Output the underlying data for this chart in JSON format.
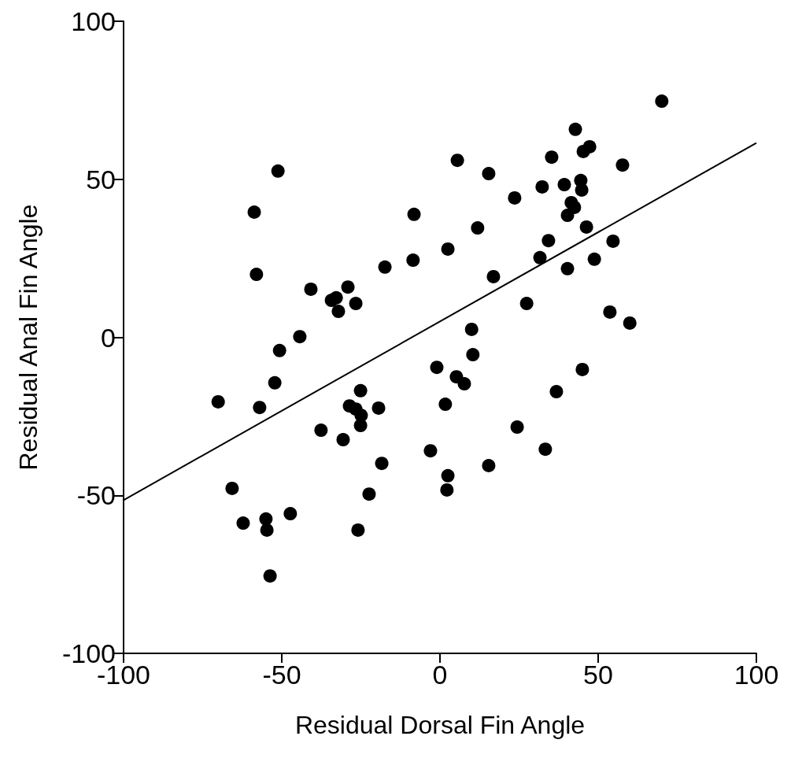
{
  "chart_data": {
    "type": "scatter",
    "xlabel": "Residual Dorsal Fin Angle",
    "ylabel": "Residual Anal Fin Angle",
    "xlim": [
      -100,
      100
    ],
    "xticks": [
      -100,
      -50,
      0,
      50,
      100
    ],
    "ylim": [
      -100,
      100
    ],
    "yticks": [
      -100,
      -50,
      0,
      50,
      100
    ],
    "grid": false,
    "marker": "circle",
    "series": [
      {
        "color": "#000000",
        "x": [
          70.1,
          42.8,
          47.3,
          45.3,
          35.3,
          5.5,
          15.4,
          57.7,
          -51.2,
          -58.7,
          32.3,
          39.3,
          44.5,
          44.8,
          23.6,
          -8.2,
          40.3,
          41.5,
          42.5,
          11.9,
          46.3,
          34.3,
          54.7,
          2.5,
          31.6,
          48.8,
          -8.5,
          40.3,
          -17.4,
          -58.0,
          16.9,
          -40.8,
          -29.1,
          -32.8,
          -34.3,
          -26.6,
          27.4,
          -32.1,
          53.7,
          60.0,
          10.0,
          -44.3,
          -50.7,
          10.4,
          -1.0,
          45.0,
          5.2,
          7.7,
          -52.2,
          -70.1,
          -57.0,
          -25.1,
          36.8,
          1.7,
          -28.6,
          -26.6,
          -19.4,
          -24.9,
          -25.1,
          -37.6,
          -30.6,
          24.4,
          33.3,
          -3.0,
          -18.4,
          15.4,
          2.5,
          2.2,
          -22.4,
          -65.7,
          -47.3,
          -55.0,
          -62.2,
          -54.7,
          -25.9,
          -53.7
        ],
        "values": [
          74.7,
          65.8,
          60.3,
          58.8,
          57.0,
          56.0,
          51.8,
          54.5,
          52.6,
          39.6,
          47.6,
          48.3,
          49.6,
          46.6,
          44.1,
          38.9,
          38.6,
          42.6,
          41.1,
          34.6,
          34.9,
          30.6,
          30.4,
          27.9,
          25.2,
          24.7,
          24.4,
          21.7,
          22.2,
          19.9,
          19.2,
          15.2,
          15.9,
          12.5,
          11.7,
          10.7,
          10.7,
          8.2,
          8.0,
          4.5,
          2.5,
          0.2,
          -4.2,
          -5.5,
          -9.5,
          -10.2,
          -12.5,
          -14.7,
          -14.4,
          -20.4,
          -22.2,
          -16.9,
          -17.2,
          -21.2,
          -21.7,
          -22.7,
          -22.4,
          -24.7,
          -27.9,
          -29.4,
          -32.4,
          -28.4,
          -35.4,
          -35.9,
          -39.9,
          -40.6,
          -43.8,
          -48.3,
          -49.6,
          -47.8,
          -55.8,
          -57.5,
          -58.8,
          -61.0,
          -61.0,
          -75.5
        ]
      },
      {
        "type": "line",
        "color": "#000000",
        "marker": "none",
        "line_style": "solid",
        "x": [
          -100,
          100
        ],
        "values": [
          -51.5,
          61.5
        ]
      }
    ]
  }
}
